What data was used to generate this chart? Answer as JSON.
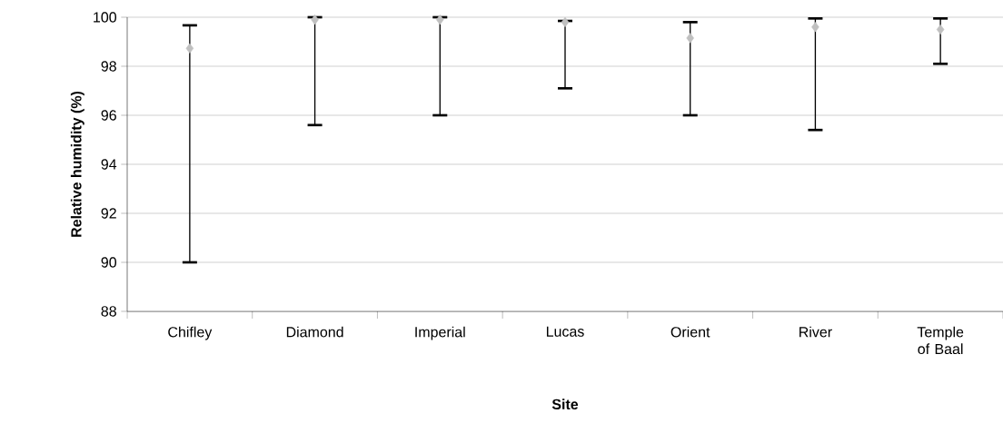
{
  "chart_data": {
    "type": "scatter",
    "xlabel": "Site",
    "ylabel": "Relative humidity (%)",
    "categories": [
      "Chifley",
      "Diamond",
      "Imperial",
      "Lucas",
      "Orient",
      "River",
      "Temple of Baal"
    ],
    "values": [
      98.73,
      99.9,
      99.9,
      99.8,
      99.15,
      99.6,
      99.5
    ],
    "errors": [
      [
        90.0,
        99.67
      ],
      [
        95.6,
        100.0
      ],
      [
        96.0,
        100.0
      ],
      [
        97.1,
        99.85
      ],
      [
        96.0,
        99.8
      ],
      [
        95.4,
        99.95
      ],
      [
        98.1,
        99.95
      ]
    ],
    "color": "#c0c0c0",
    "marker": "diamond",
    "ylim": [
      88,
      100
    ],
    "yticks": [
      88,
      90,
      92,
      94,
      96,
      98,
      100
    ],
    "grid": "y"
  }
}
